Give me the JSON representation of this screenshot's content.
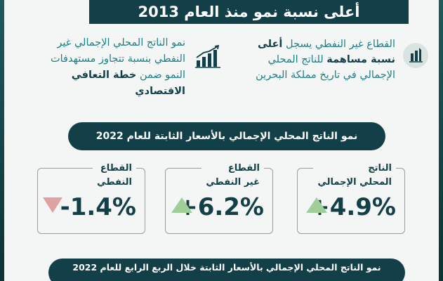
{
  "title": "أعلى نسبة نمو منذ العام 2013",
  "intro_right": {
    "line1_a": "القطاع غير النفطي يسجل ",
    "line1_b": "أعلى",
    "line2_a": "نسبة مساهمة",
    "line2_b": " للناتج المحلي",
    "line3": "الإجمالي في تاريخ مملكة البحرين",
    "icon": "rocket-growth-icon"
  },
  "intro_left": {
    "line1": "نمو الناتج المحلي الإجمالي غير",
    "line2": "النفطي بنسبة تتجاوز مستهدفات",
    "line3_a": "النمو ضمن ",
    "line3_b": "خطة التعافي",
    "line4": "الاقتصادي",
    "icon": "bar-chart-growth-icon"
  },
  "section1": "نمو الناتج المحلي الإجمالي بالأسعار الثابتة للعام 2022",
  "stats": [
    {
      "label_1": "الناتج",
      "label_2": "المحلي الإجمالي",
      "value": "+4.9%",
      "trend": "up"
    },
    {
      "label_1": "القطاع",
      "label_2": "غير النفطي",
      "value": "+6.2%",
      "trend": "up"
    },
    {
      "label_1": "القطاع",
      "label_2": "النفطي",
      "value": "-1.4%",
      "trend": "down"
    }
  ],
  "section2": "نمو الناتج المحلي الإجمالي بالأسعار الثابتة خلال الربع الرابع للعام 2022",
  "colors": {
    "navy": "#123f48",
    "teal_text": "#1f7f86",
    "up": "#9fcf97",
    "down": "#dfa2a2"
  }
}
